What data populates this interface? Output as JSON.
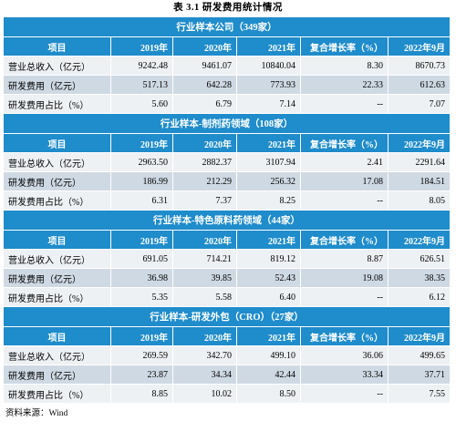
{
  "caption": "表 3.1   研发费用统计情况",
  "column_headers": [
    "项目",
    "2019年",
    "2020年",
    "2021年",
    "复合增长率（%）",
    "2022年9月"
  ],
  "groups": [
    {
      "title": "行业样本公司（349家）",
      "rows": [
        {
          "label": "营业总收入（亿元）",
          "v2019": "9242.48",
          "v2020": "9461.07",
          "v2021": "10840.04",
          "cagr": "8.30",
          "v2022": "8670.73"
        },
        {
          "label": "研发费用（亿元）",
          "v2019": "517.13",
          "v2020": "642.28",
          "v2021": "773.93",
          "cagr": "22.33",
          "v2022": "612.63"
        },
        {
          "label": "研发费用占比（%）",
          "v2019": "5.60",
          "v2020": "6.79",
          "v2021": "7.14",
          "cagr": "--",
          "v2022": "7.07"
        }
      ]
    },
    {
      "title": "行业样本-制剂药领域（108家）",
      "rows": [
        {
          "label": "营业总收入（亿元）",
          "v2019": "2963.50",
          "v2020": "2882.37",
          "v2021": "3107.94",
          "cagr": "2.41",
          "v2022": "2291.64"
        },
        {
          "label": "研发费用（亿元）",
          "v2019": "186.99",
          "v2020": "212.29",
          "v2021": "256.32",
          "cagr": "17.08",
          "v2022": "184.51"
        },
        {
          "label": "研发费用占比（%）",
          "v2019": "6.31",
          "v2020": "7.37",
          "v2021": "8.25",
          "cagr": "--",
          "v2022": "8.05"
        }
      ]
    },
    {
      "title": "行业样本-特色原料药领域（44家）",
      "rows": [
        {
          "label": "营业总收入（亿元）",
          "v2019": "691.05",
          "v2020": "714.21",
          "v2021": "819.12",
          "cagr": "8.87",
          "v2022": "626.51"
        },
        {
          "label": "研发费用（亿元）",
          "v2019": "36.98",
          "v2020": "39.85",
          "v2021": "52.43",
          "cagr": "19.08",
          "v2022": "38.35"
        },
        {
          "label": "研发费用占比（%）",
          "v2019": "5.35",
          "v2020": "5.58",
          "v2021": "6.40",
          "cagr": "--",
          "v2022": "6.12"
        }
      ]
    },
    {
      "title": "行业样本-研发外包（CRO）（27家）",
      "rows": [
        {
          "label": "营业总收入（亿元）",
          "v2019": "269.59",
          "v2020": "342.70",
          "v2021": "499.10",
          "cagr": "36.06",
          "v2022": "499.65"
        },
        {
          "label": "研发费用（亿元）",
          "v2019": "23.87",
          "v2020": "34.34",
          "v2021": "42.44",
          "cagr": "33.34",
          "v2022": "37.71"
        },
        {
          "label": "研发费用占比（%）",
          "v2019": "8.85",
          "v2020": "10.02",
          "v2021": "8.50",
          "cagr": "--",
          "v2022": "7.55"
        }
      ]
    }
  ],
  "source": "资料来源：Wind",
  "colors": {
    "header_blue": "#1f8ccb",
    "row_light": "#eef1f4",
    "row_dark": "#cfd9e3"
  }
}
